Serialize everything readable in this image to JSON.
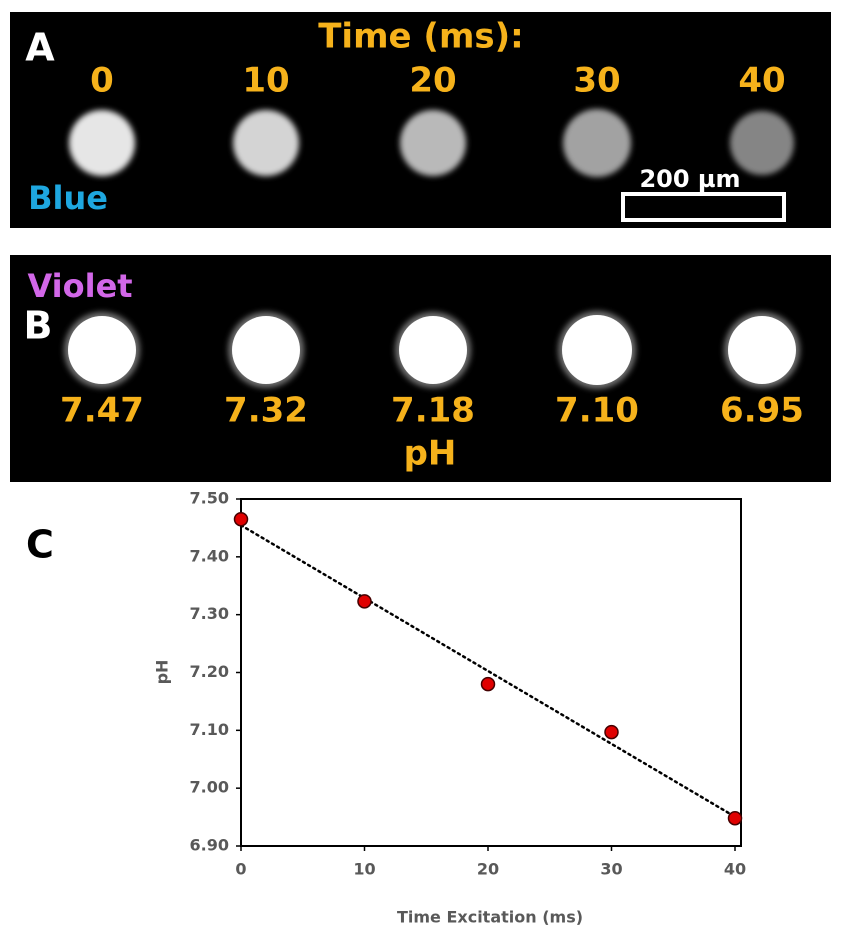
{
  "panel_a": {
    "label": "A",
    "title": "Time (ms):",
    "times": [
      "0",
      "10",
      "20",
      "30",
      "40"
    ],
    "channel": "Blue",
    "scale_bar": "200 µm"
  },
  "panel_b": {
    "label": "B",
    "channel": "Violet",
    "ph_values": [
      "7.47",
      "7.32",
      "7.18",
      "7.10",
      "6.95"
    ],
    "axis_label": "pH"
  },
  "panel_c": {
    "label": "C"
  },
  "chart_data": {
    "type": "scatter",
    "x_label": "Time Excitation (ms)",
    "y_label": "pH",
    "x": [
      0,
      10,
      20,
      30,
      40
    ],
    "values": [
      7.465,
      7.323,
      7.18,
      7.097,
      6.948
    ],
    "color": "#e00000",
    "xlim": [
      0,
      40
    ],
    "ylim": [
      6.9,
      7.5
    ],
    "xticks": [
      0,
      10,
      20,
      30,
      40
    ],
    "yticks": [
      {
        "value": 6.9,
        "label": "6.90"
      },
      {
        "value": 7.0,
        "label": "7.00"
      },
      {
        "value": 7.1,
        "label": "7.10"
      },
      {
        "value": 7.2,
        "label": "7.20"
      },
      {
        "value": 7.3,
        "label": "7.30"
      },
      {
        "value": 7.4,
        "label": "7.40"
      },
      {
        "value": 7.5,
        "label": "7.50"
      }
    ],
    "trendline": true,
    "grid": false
  }
}
